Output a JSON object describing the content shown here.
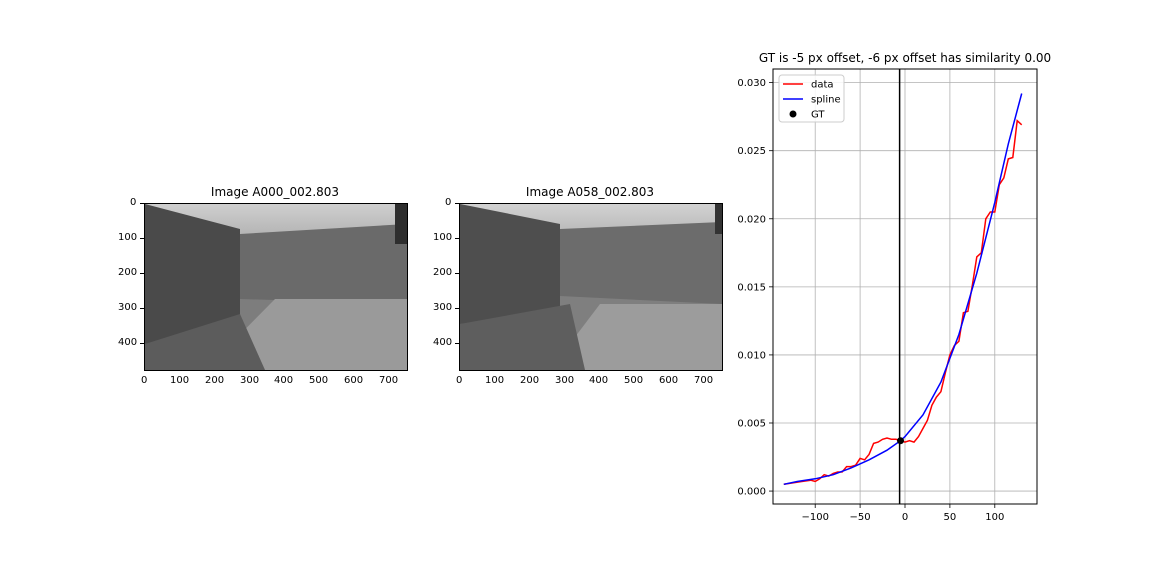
{
  "figure": {
    "left_panel": {
      "title": "Image A000_002.803",
      "x_ticks": [
        "0",
        "100",
        "200",
        "300",
        "400",
        "500",
        "600",
        "700"
      ],
      "y_ticks": [
        "0",
        "100",
        "200",
        "300",
        "400"
      ]
    },
    "middle_panel": {
      "title": "Image A058_002.803",
      "x_ticks": [
        "0",
        "100",
        "200",
        "300",
        "400",
        "500",
        "600",
        "700"
      ],
      "y_ticks": [
        "0",
        "100",
        "200",
        "300",
        "400"
      ]
    }
  },
  "chart_data": {
    "type": "line",
    "title": "GT is -5 px offset, -6 px offset has similarity 0.00",
    "xlabel": "",
    "ylabel": "",
    "xlim": [
      -147,
      147
    ],
    "ylim": [
      -0.00095,
      0.031
    ],
    "grid": true,
    "legend_position": "top-left",
    "x_ticks": [
      -100,
      -50,
      0,
      50,
      100
    ],
    "x_tick_labels": [
      "−100",
      "−50",
      "0",
      "50",
      "100"
    ],
    "y_ticks": [
      0.0,
      0.005,
      0.01,
      0.015,
      0.02,
      0.025,
      0.03
    ],
    "y_tick_labels": [
      "0.000",
      "0.005",
      "0.010",
      "0.015",
      "0.020",
      "0.025",
      "0.030"
    ],
    "vertical_line_x": -6,
    "series": [
      {
        "name": "data",
        "color": "#ff0000",
        "points": [
          [
            -135,
            0.0005
          ],
          [
            -125,
            0.0006
          ],
          [
            -115,
            0.0007
          ],
          [
            -105,
            0.0008
          ],
          [
            -100,
            0.0007
          ],
          [
            -95,
            0.0009
          ],
          [
            -90,
            0.0012
          ],
          [
            -85,
            0.0011
          ],
          [
            -80,
            0.0013
          ],
          [
            -75,
            0.0014
          ],
          [
            -70,
            0.0014
          ],
          [
            -65,
            0.0018
          ],
          [
            -60,
            0.0018
          ],
          [
            -55,
            0.0019
          ],
          [
            -50,
            0.0024
          ],
          [
            -45,
            0.0023
          ],
          [
            -40,
            0.0027
          ],
          [
            -35,
            0.0035
          ],
          [
            -30,
            0.0036
          ],
          [
            -25,
            0.0038
          ],
          [
            -20,
            0.0039
          ],
          [
            -15,
            0.0038
          ],
          [
            -10,
            0.0038
          ],
          [
            -5,
            0.0037
          ],
          [
            0,
            0.0036
          ],
          [
            5,
            0.0037
          ],
          [
            10,
            0.0036
          ],
          [
            15,
            0.004
          ],
          [
            20,
            0.0046
          ],
          [
            25,
            0.0052
          ],
          [
            30,
            0.0063
          ],
          [
            35,
            0.0069
          ],
          [
            40,
            0.0073
          ],
          [
            45,
            0.0087
          ],
          [
            50,
            0.01
          ],
          [
            55,
            0.0107
          ],
          [
            60,
            0.011
          ],
          [
            65,
            0.0131
          ],
          [
            70,
            0.0132
          ],
          [
            75,
            0.0151
          ],
          [
            80,
            0.0172
          ],
          [
            85,
            0.0175
          ],
          [
            90,
            0.02
          ],
          [
            95,
            0.0205
          ],
          [
            100,
            0.0205
          ],
          [
            105,
            0.0225
          ],
          [
            110,
            0.023
          ],
          [
            115,
            0.0244
          ],
          [
            120,
            0.0245
          ],
          [
            125,
            0.0272
          ],
          [
            130,
            0.0269
          ]
        ]
      },
      {
        "name": "spline",
        "color": "#0000ff",
        "points": [
          [
            -135,
            0.0005
          ],
          [
            -120,
            0.0007
          ],
          [
            -100,
            0.0009
          ],
          [
            -80,
            0.0012
          ],
          [
            -60,
            0.0017
          ],
          [
            -40,
            0.0023
          ],
          [
            -20,
            0.003
          ],
          [
            -5,
            0.0037
          ],
          [
            0,
            0.004
          ],
          [
            20,
            0.0056
          ],
          [
            40,
            0.008
          ],
          [
            60,
            0.0115
          ],
          [
            80,
            0.016
          ],
          [
            100,
            0.0212
          ],
          [
            115,
            0.0255
          ],
          [
            130,
            0.0292
          ]
        ]
      }
    ],
    "markers": [
      {
        "name": "GT",
        "color": "#000000",
        "x": -5,
        "y": 0.0037
      }
    ],
    "legend": [
      "data",
      "spline",
      "GT"
    ]
  }
}
